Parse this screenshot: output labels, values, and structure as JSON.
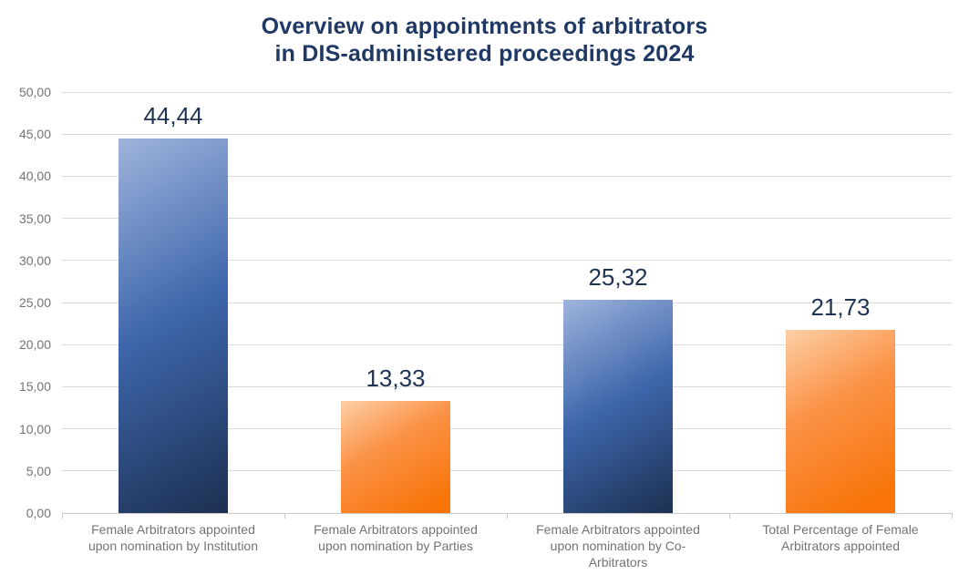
{
  "title": {
    "line1": "Overview on appointments of arbitrators",
    "line2": "in DIS-administered proceedings 2024"
  },
  "colors": {
    "title": "#1F3864",
    "value_label": "#1F3352",
    "axis_label": "#737373",
    "gridline": "#DCDCDC",
    "axis_line": "#C9C9C9",
    "blue_bar_top": "#9FB4DC",
    "blue_bar_mid": "#3E66AC",
    "blue_bar_bottom": "#1C3050",
    "orange_bar_top": "#FDCFA6",
    "orange_bar_mid": "#FB9246",
    "orange_bar_bottom": "#F87409"
  },
  "chart_data": {
    "type": "bar",
    "title": "Overview on appointments of arbitrators in DIS-administered proceedings 2024",
    "categories": [
      "Female Arbitrators appointed upon nomination by Institution",
      "Female Arbitrators appointed upon nomination by Parties",
      "Female Arbitrators appointed upon nomination by Co-Arbitrators",
      "Total Percentage of Female Arbitrators appointed"
    ],
    "category_label_lines": [
      [
        "Female Arbitrators appointed",
        "upon nomination by Institution"
      ],
      [
        "Female Arbitrators appointed",
        "upon nomination by Parties"
      ],
      [
        "Female Arbitrators appointed",
        "upon nomination by Co-",
        "Arbitrators"
      ],
      [
        "Total Percentage of Female",
        "Arbitrators appointed"
      ]
    ],
    "values": [
      44.44,
      13.33,
      25.32,
      21.73
    ],
    "value_labels": [
      "44,44",
      "13,33",
      "25,32",
      "21,73"
    ],
    "bar_styles": [
      "blue",
      "orange",
      "blue",
      "orange"
    ],
    "ylim": [
      0,
      50
    ],
    "ytick_step": 5,
    "ytick_labels": [
      "0,00",
      "5,00",
      "10,00",
      "15,00",
      "20,00",
      "25,00",
      "30,00",
      "35,00",
      "40,00",
      "45,00",
      "50,00"
    ],
    "xlabel": "",
    "ylabel": "",
    "grid": true,
    "legend": false
  }
}
